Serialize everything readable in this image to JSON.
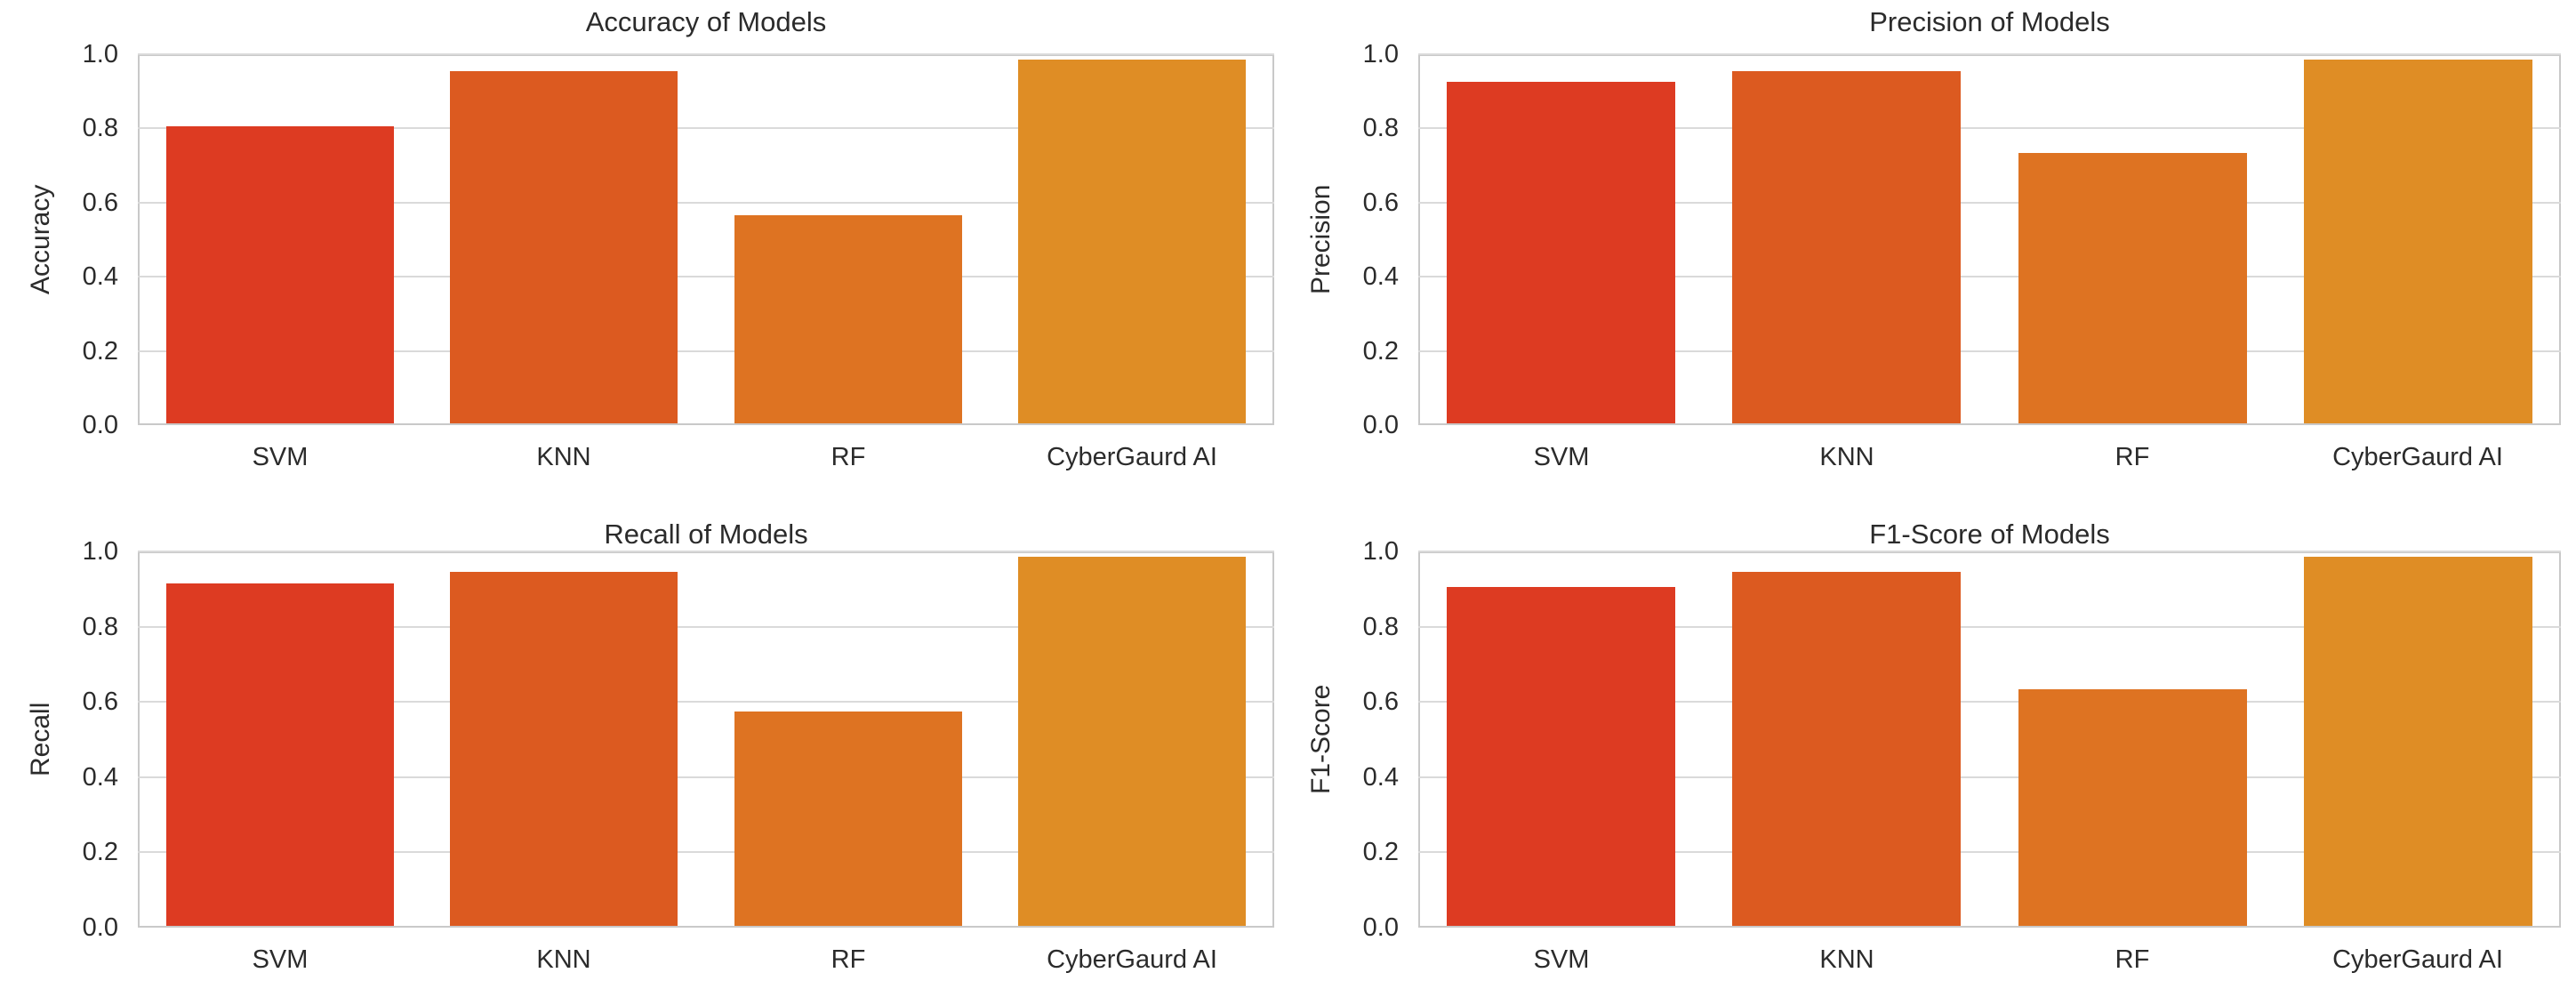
{
  "figure": {
    "background": "#ffffff",
    "grid_color": "#dadada",
    "spine_color": "#c9c9c9",
    "text_color": "#2b2b2b"
  },
  "axis": {
    "ytick_labels": [
      "0.0",
      "0.2",
      "0.4",
      "0.6",
      "0.8",
      "1.0"
    ],
    "ytick_values": [
      0,
      0.2,
      0.4,
      0.6,
      0.8,
      1.0
    ]
  },
  "chart_data": [
    {
      "type": "bar",
      "title": "Accuracy of Models",
      "ylabel": "Accuracy",
      "xlabel": "",
      "categories": [
        "SVM",
        "KNN",
        "RF",
        "CyberGaurd AI"
      ],
      "values": [
        0.8,
        0.95,
        0.56,
        0.98
      ],
      "bar_colors": [
        "#dd3b22",
        "#dc5a20",
        "#de7322",
        "#df8d25"
      ],
      "ylim": [
        0,
        1
      ],
      "grid": true,
      "legend": false
    },
    {
      "type": "bar",
      "title": "Precision of Models",
      "ylabel": "Precision",
      "xlabel": "",
      "categories": [
        "SVM",
        "KNN",
        "RF",
        "CyberGaurd AI"
      ],
      "values": [
        0.92,
        0.95,
        0.73,
        0.98
      ],
      "bar_colors": [
        "#dd3b22",
        "#dc5a20",
        "#de7322",
        "#df8d25"
      ],
      "ylim": [
        0,
        1
      ],
      "grid": true,
      "legend": false
    },
    {
      "type": "bar",
      "title": "Recall of Models",
      "ylabel": "Recall",
      "xlabel": "",
      "categories": [
        "SVM",
        "KNN",
        "RF",
        "CyberGaurd AI"
      ],
      "values": [
        0.91,
        0.94,
        0.57,
        0.98
      ],
      "bar_colors": [
        "#dd3b22",
        "#dc5a20",
        "#de7322",
        "#df8d25"
      ],
      "ylim": [
        0,
        1
      ],
      "grid": true,
      "legend": false
    },
    {
      "type": "bar",
      "title": "F1-Score of Models",
      "ylabel": "F1-Score",
      "xlabel": "",
      "categories": [
        "SVM",
        "KNN",
        "RF",
        "CyberGaurd AI"
      ],
      "values": [
        0.9,
        0.94,
        0.63,
        0.98
      ],
      "bar_colors": [
        "#dd3b22",
        "#dc5a20",
        "#de7322",
        "#df8d25"
      ],
      "ylim": [
        0,
        1
      ],
      "grid": true,
      "legend": false
    }
  ]
}
